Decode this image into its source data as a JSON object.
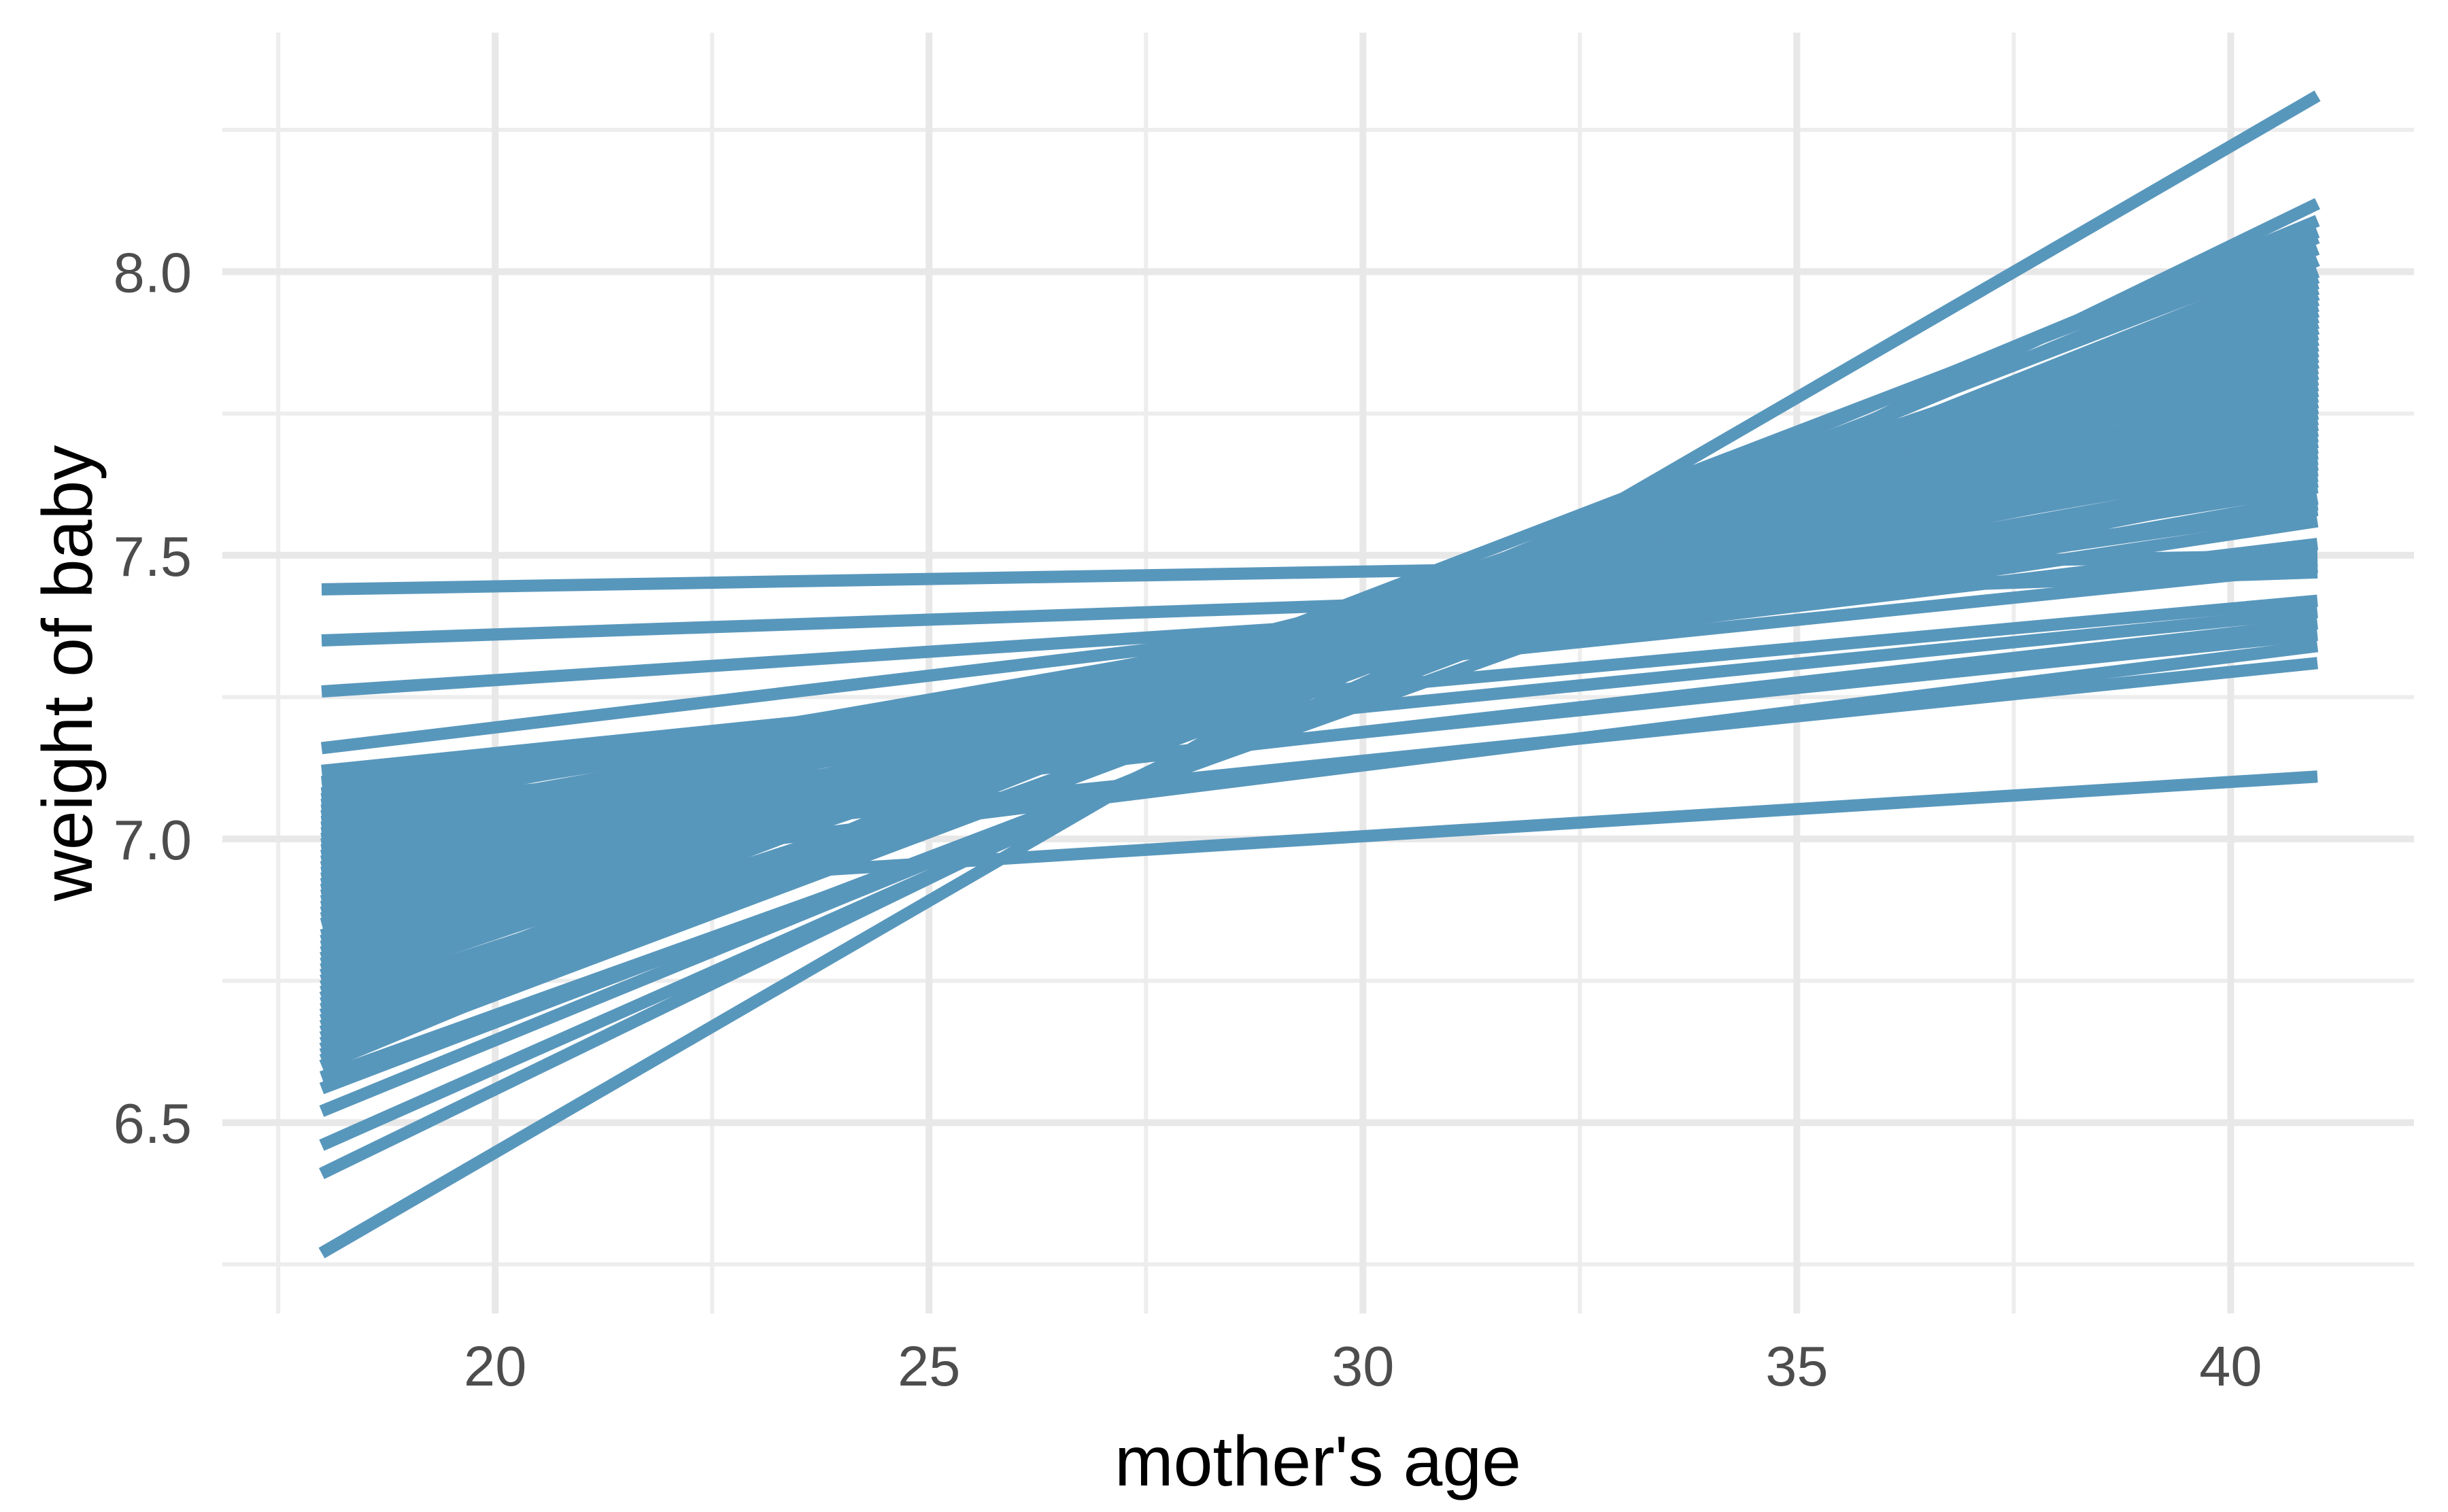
{
  "chart_data": {
    "type": "line",
    "title": "",
    "xlabel": "mother's age",
    "ylabel": "weight of baby",
    "legend_position": "none",
    "grid": "major and minor, light gray on white panel",
    "x_ticks": [
      {
        "value": 20,
        "label": "20"
      },
      {
        "value": 25,
        "label": "25"
      },
      {
        "value": 30,
        "label": "30"
      },
      {
        "value": 35,
        "label": "35"
      },
      {
        "value": 40,
        "label": "40"
      }
    ],
    "x_minor_ticks": [
      17.5,
      22.5,
      27.5,
      32.5,
      37.5
    ],
    "y_ticks": [
      {
        "value": 6.5,
        "label": "6.5"
      },
      {
        "value": 7.0,
        "label": "7.0"
      },
      {
        "value": 7.5,
        "label": "7.5"
      },
      {
        "value": 8.0,
        "label": "8.0"
      }
    ],
    "y_minor_ticks": [
      6.25,
      6.75,
      7.25,
      7.75,
      8.25
    ],
    "xlim": [
      16.85,
      42.11
    ],
    "ylim": [
      6.16,
      8.42
    ],
    "x_data_range": [
      18,
      41
    ],
    "colors": {
      "line": "#5897BC",
      "grid_major": "#E8E8E8",
      "grid_minor": "#EDEDED",
      "tick_label": "#4D4D4D",
      "axis_title": "#000000",
      "background": "#FFFFFF"
    },
    "series_description": "67 straight posterior-draw regression lines, each spanning mother's age 18 to 41; values are [weight at age 18, weight at age 41]",
    "lines_y_at_x18_x41": [
      [
        6.27,
        8.31
      ],
      [
        6.41,
        8.12
      ],
      [
        7.44,
        7.5
      ],
      [
        7.35,
        7.47
      ],
      [
        7.26,
        7.49
      ],
      [
        7.16,
        7.58
      ],
      [
        6.89,
        7.11
      ],
      [
        6.95,
        7.83
      ],
      [
        6.68,
        7.95
      ],
      [
        7.02,
        7.65
      ],
      [
        6.75,
        7.9
      ],
      [
        6.88,
        7.72
      ],
      [
        6.62,
        8.02
      ],
      [
        6.98,
        7.6
      ],
      [
        6.71,
        7.86
      ],
      [
        6.92,
        7.78
      ],
      [
        6.65,
        7.99
      ],
      [
        7.05,
        7.62
      ],
      [
        6.8,
        7.82
      ],
      [
        6.9,
        7.7
      ],
      [
        6.6,
        8.06
      ],
      [
        7.0,
        7.68
      ],
      [
        6.73,
        7.92
      ],
      [
        6.85,
        7.76
      ],
      [
        6.67,
        7.97
      ],
      [
        7.08,
        7.58
      ],
      [
        6.78,
        7.85
      ],
      [
        6.93,
        7.66
      ],
      [
        6.63,
        8.09
      ],
      [
        7.1,
        7.52
      ],
      [
        6.7,
        7.88
      ],
      [
        6.97,
        7.74
      ],
      [
        6.61,
        7.93
      ],
      [
        7.03,
        7.56
      ],
      [
        6.76,
        7.94
      ],
      [
        6.87,
        7.8
      ],
      [
        6.66,
        8.0
      ],
      [
        6.99,
        7.71
      ],
      [
        6.82,
        7.89
      ],
      [
        6.94,
        7.63
      ],
      [
        6.69,
        8.04
      ],
      [
        7.06,
        7.67
      ],
      [
        6.74,
        7.96
      ],
      [
        6.89,
        7.73
      ],
      [
        6.64,
        7.91
      ],
      [
        7.01,
        7.59
      ],
      [
        6.79,
        7.98
      ],
      [
        6.91,
        7.81
      ],
      [
        6.72,
        8.07
      ],
      [
        7.07,
        7.64
      ],
      [
        6.77,
        7.87
      ],
      [
        6.96,
        7.69
      ],
      [
        6.52,
        7.96
      ],
      [
        6.46,
        8.02
      ],
      [
        6.56,
        7.9
      ],
      [
        6.86,
        7.75
      ],
      [
        7.12,
        7.48
      ],
      [
        6.81,
        7.79
      ],
      [
        6.58,
        7.84
      ],
      [
        7.04,
        7.7
      ],
      [
        6.83,
        7.77
      ],
      [
        7.0,
        7.36
      ],
      [
        6.95,
        7.31
      ],
      [
        7.05,
        7.4
      ],
      [
        6.9,
        7.34
      ],
      [
        7.1,
        7.42
      ],
      [
        6.98,
        7.38
      ]
    ]
  }
}
